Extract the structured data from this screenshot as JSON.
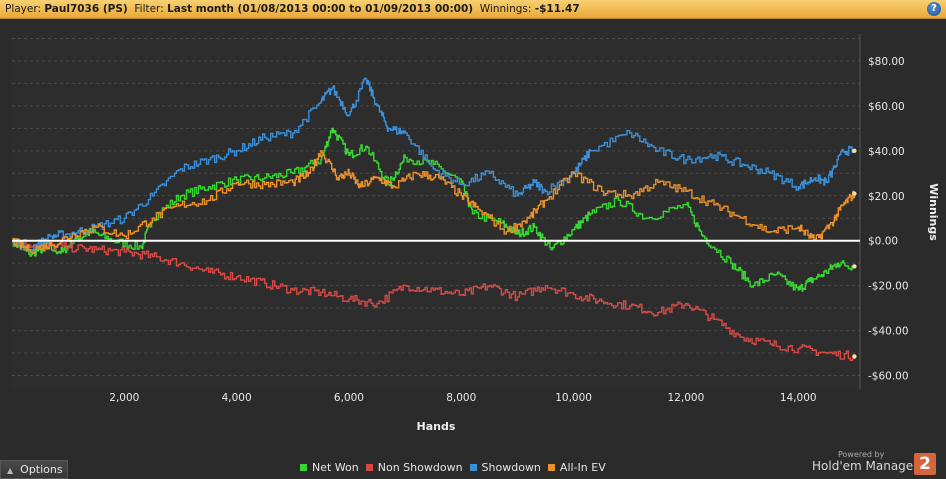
{
  "header": {
    "player_label": "Player:",
    "player_value": "Paul7036 (PS)",
    "filter_label": "Filter:",
    "filter_value": "Last month (01/08/2013 00:00 to 01/09/2013 00:00)",
    "winnings_label": "Winnings:",
    "winnings_value": "-$11.47",
    "help_label": "?"
  },
  "footer": {
    "options_label": "Options",
    "powered_by": "Powered by",
    "brand": "Hold'em Manager",
    "brand_logo": "2"
  },
  "colors": {
    "Net Won": "#38d632",
    "Non Showdown": "#d64a46",
    "Showdown": "#3b8fd6",
    "All-In EV": "#e9902a",
    "background": "#2b2b2b",
    "zero_line": "#ffffff"
  },
  "chart_data": {
    "type": "line",
    "title": "",
    "xlabel": "Hands",
    "ylabel": "Winnings",
    "xlim": [
      0,
      15100
    ],
    "ylim": [
      -66,
      92
    ],
    "x_ticks": [
      2000,
      4000,
      6000,
      8000,
      10000,
      12000,
      14000
    ],
    "x_tick_labels": [
      "2,000",
      "4,000",
      "6,000",
      "8,000",
      "10,000",
      "12,000",
      "14,000"
    ],
    "y_ticks": [
      80,
      60,
      40,
      20,
      0,
      -20,
      -40,
      -60
    ],
    "y_tick_labels": [
      "$80.00",
      "$60.00",
      "$40.00",
      "$20.00",
      "$0.00",
      "-$20.00",
      "-$40.00",
      "-$60.00"
    ],
    "grid": "dashed horizontal",
    "legend": "bottom",
    "series": [
      {
        "name": "Net Won",
        "color": "#38d632",
        "x": [
          0,
          300,
          600,
          900,
          1100,
          1400,
          1800,
          2300,
          2500,
          3000,
          3500,
          4000,
          4500,
          5000,
          5500,
          5700,
          6000,
          6300,
          6700,
          7000,
          7500,
          8000,
          8200,
          8700,
          9000,
          9300,
          9600,
          10000,
          10300,
          10800,
          11300,
          12000,
          12300,
          12800,
          13200,
          13600,
          14000,
          14200,
          14500,
          14700,
          15000
        ],
        "values": [
          0,
          -6,
          -3,
          -5,
          0,
          4,
          0,
          -3,
          10,
          20,
          24,
          27,
          28,
          30,
          36,
          50,
          38,
          42,
          25,
          37,
          34,
          26,
          12,
          8,
          3,
          6,
          -4,
          5,
          12,
          18,
          10,
          16,
          2,
          -10,
          -20,
          -15,
          -22,
          -18,
          -14,
          -10,
          -11.47
        ]
      },
      {
        "name": "Non Showdown",
        "color": "#d64a46",
        "x": [
          0,
          500,
          1000,
          1500,
          2000,
          2500,
          3000,
          3500,
          4000,
          4500,
          5000,
          5500,
          6000,
          6500,
          7000,
          7500,
          8000,
          8500,
          9000,
          9500,
          10000,
          10500,
          11000,
          11500,
          12000,
          12500,
          13000,
          13500,
          14000,
          14500,
          15000
        ],
        "values": [
          0,
          -2,
          -3,
          -4,
          -5,
          -7,
          -10,
          -14,
          -16,
          -19,
          -22,
          -23,
          -26,
          -28,
          -20,
          -22,
          -24,
          -20,
          -25,
          -20,
          -24,
          -27,
          -29,
          -32,
          -28,
          -35,
          -43,
          -46,
          -48,
          -50,
          -51.5
        ]
      },
      {
        "name": "Showdown",
        "color": "#3b8fd6",
        "x": [
          0,
          300,
          700,
          1000,
          1500,
          2000,
          2500,
          3000,
          3500,
          4000,
          4500,
          5000,
          5500,
          5700,
          6000,
          6300,
          6500,
          6700,
          7000,
          7500,
          8000,
          8500,
          9000,
          9300,
          9500,
          10000,
          10300,
          11000,
          11500,
          12000,
          12500,
          13000,
          13500,
          14000,
          14300,
          14500,
          14800,
          15000
        ],
        "values": [
          0,
          -4,
          2,
          3,
          6,
          10,
          20,
          32,
          36,
          40,
          46,
          48,
          62,
          68,
          56,
          72,
          60,
          50,
          48,
          32,
          25,
          30,
          20,
          26,
          22,
          30,
          40,
          48,
          40,
          36,
          38,
          34,
          30,
          24,
          28,
          26,
          40,
          40
        ]
      },
      {
        "name": "All-In EV",
        "color": "#e9902a",
        "x": [
          0,
          300,
          700,
          1100,
          1500,
          2000,
          2500,
          3000,
          3500,
          4000,
          4500,
          5000,
          5300,
          5500,
          5800,
          6000,
          6200,
          6500,
          6800,
          7200,
          7600,
          8000,
          8300,
          8800,
          9200,
          9500,
          10000,
          10500,
          11000,
          11500,
          12000,
          12500,
          13000,
          13500,
          14000,
          14300,
          14600,
          14800,
          15000
        ],
        "values": [
          0,
          -4,
          -2,
          3,
          6,
          2,
          10,
          16,
          18,
          26,
          25,
          26,
          30,
          40,
          28,
          30,
          24,
          28,
          24,
          30,
          28,
          20,
          14,
          4,
          10,
          18,
          30,
          22,
          20,
          26,
          22,
          16,
          10,
          4,
          6,
          0,
          8,
          16,
          21
        ]
      }
    ]
  }
}
